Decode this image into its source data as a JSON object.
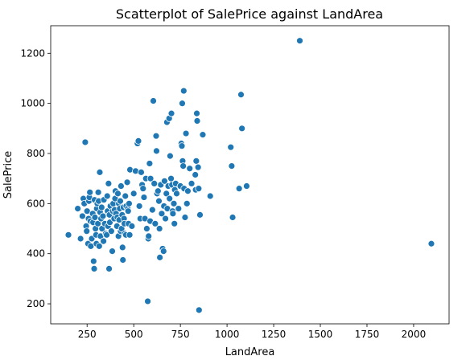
{
  "chart_data": {
    "type": "scatter",
    "title": "Scatterplot of SalePrice against LandArea",
    "xlabel": "LandArea",
    "ylabel": "SalePrice",
    "xlim": [
      55,
      2190
    ],
    "ylim": [
      120,
      1310
    ],
    "xticks": [
      250,
      500,
      750,
      1000,
      1250,
      1500,
      1750,
      2000
    ],
    "yticks": [
      200,
      400,
      600,
      800,
      1000,
      1200
    ],
    "grid": false,
    "color": "#1f77b4",
    "points": [
      [
        150,
        475
      ],
      [
        200,
        580
      ],
      [
        215,
        460
      ],
      [
        225,
        550
      ],
      [
        230,
        620
      ],
      [
        235,
        600
      ],
      [
        240,
        845
      ],
      [
        245,
        510
      ],
      [
        248,
        490
      ],
      [
        250,
        570
      ],
      [
        255,
        440
      ],
      [
        258,
        540
      ],
      [
        260,
        610
      ],
      [
        262,
        625
      ],
      [
        265,
        645
      ],
      [
        268,
        530
      ],
      [
        270,
        430
      ],
      [
        275,
        460
      ],
      [
        280,
        560
      ],
      [
        282,
        525
      ],
      [
        285,
        370
      ],
      [
        288,
        340
      ],
      [
        290,
        615
      ],
      [
        292,
        545
      ],
      [
        295,
        500
      ],
      [
        298,
        475
      ],
      [
        300,
        440
      ],
      [
        302,
        580
      ],
      [
        305,
        600
      ],
      [
        308,
        520
      ],
      [
        310,
        645
      ],
      [
        312,
        610
      ],
      [
        315,
        430
      ],
      [
        318,
        725
      ],
      [
        320,
        565
      ],
      [
        322,
        470
      ],
      [
        325,
        540
      ],
      [
        328,
        585
      ],
      [
        330,
        500
      ],
      [
        335,
        550
      ],
      [
        338,
        450
      ],
      [
        340,
        615
      ],
      [
        345,
        520
      ],
      [
        350,
        480
      ],
      [
        355,
        475
      ],
      [
        358,
        630
      ],
      [
        360,
        570
      ],
      [
        362,
        510
      ],
      [
        365,
        680
      ],
      [
        368,
        340
      ],
      [
        370,
        555
      ],
      [
        372,
        525
      ],
      [
        375,
        590
      ],
      [
        380,
        490
      ],
      [
        385,
        410
      ],
      [
        388,
        570
      ],
      [
        390,
        600
      ],
      [
        395,
        540
      ],
      [
        398,
        575
      ],
      [
        400,
        620
      ],
      [
        402,
        650
      ],
      [
        405,
        560
      ],
      [
        410,
        510
      ],
      [
        412,
        545
      ],
      [
        415,
        640
      ],
      [
        418,
        470
      ],
      [
        420,
        600
      ],
      [
        422,
        535
      ],
      [
        425,
        580
      ],
      [
        428,
        610
      ],
      [
        430,
        490
      ],
      [
        432,
        670
      ],
      [
        435,
        500
      ],
      [
        438,
        555
      ],
      [
        440,
        425
      ],
      [
        442,
        375
      ],
      [
        445,
        585
      ],
      [
        448,
        540
      ],
      [
        450,
        520
      ],
      [
        452,
        480
      ],
      [
        455,
        630
      ],
      [
        458,
        475
      ],
      [
        460,
        590
      ],
      [
        465,
        685
      ],
      [
        468,
        580
      ],
      [
        470,
        570
      ],
      [
        472,
        520
      ],
      [
        475,
        600
      ],
      [
        478,
        475
      ],
      [
        480,
        735
      ],
      [
        490,
        510
      ],
      [
        500,
        640
      ],
      [
        510,
        730
      ],
      [
        520,
        840
      ],
      [
        525,
        850
      ],
      [
        530,
        590
      ],
      [
        535,
        540
      ],
      [
        540,
        725
      ],
      [
        545,
        675
      ],
      [
        550,
        660
      ],
      [
        555,
        625
      ],
      [
        560,
        540
      ],
      [
        565,
        700
      ],
      [
        570,
        500
      ],
      [
        575,
        210
      ],
      [
        578,
        460
      ],
      [
        580,
        470
      ],
      [
        585,
        760
      ],
      [
        588,
        530
      ],
      [
        590,
        700
      ],
      [
        600,
        575
      ],
      [
        605,
        1010
      ],
      [
        610,
        680
      ],
      [
        615,
        520
      ],
      [
        620,
        870
      ],
      [
        622,
        810
      ],
      [
        625,
        640
      ],
      [
        630,
        650
      ],
      [
        635,
        610
      ],
      [
        638,
        500
      ],
      [
        640,
        385
      ],
      [
        645,
        675
      ],
      [
        650,
        560
      ],
      [
        655,
        420
      ],
      [
        660,
        410
      ],
      [
        662,
        590
      ],
      [
        665,
        690
      ],
      [
        670,
        540
      ],
      [
        675,
        640
      ],
      [
        678,
        925
      ],
      [
        680,
        580
      ],
      [
        685,
        670
      ],
      [
        690,
        940
      ],
      [
        692,
        620
      ],
      [
        695,
        790
      ],
      [
        700,
        700
      ],
      [
        702,
        960
      ],
      [
        705,
        675
      ],
      [
        708,
        570
      ],
      [
        710,
        560
      ],
      [
        715,
        600
      ],
      [
        718,
        520
      ],
      [
        720,
        655
      ],
      [
        725,
        680
      ],
      [
        730,
        640
      ],
      [
        740,
        580
      ],
      [
        750,
        670
      ],
      [
        755,
        840
      ],
      [
        758,
        830
      ],
      [
        760,
        1000
      ],
      [
        762,
        770
      ],
      [
        765,
        750
      ],
      [
        768,
        1050
      ],
      [
        770,
        660
      ],
      [
        775,
        545
      ],
      [
        780,
        880
      ],
      [
        785,
        600
      ],
      [
        790,
        650
      ],
      [
        800,
        740
      ],
      [
        810,
        680
      ],
      [
        830,
        715
      ],
      [
        832,
        655
      ],
      [
        835,
        770
      ],
      [
        838,
        960
      ],
      [
        840,
        930
      ],
      [
        842,
        745
      ],
      [
        845,
        745
      ],
      [
        848,
        660
      ],
      [
        850,
        175
      ],
      [
        855,
        555
      ],
      [
        870,
        875
      ],
      [
        910,
        630
      ],
      [
        1020,
        825
      ],
      [
        1025,
        750
      ],
      [
        1030,
        545
      ],
      [
        1065,
        660
      ],
      [
        1075,
        1035
      ],
      [
        1080,
        900
      ],
      [
        1105,
        670
      ],
      [
        1390,
        1250
      ],
      [
        2095,
        440
      ]
    ]
  }
}
